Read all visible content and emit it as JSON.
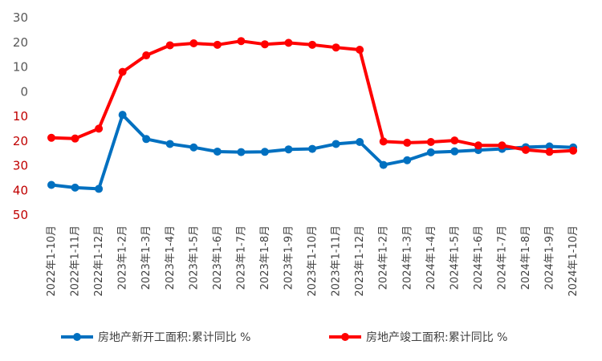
{
  "chart_data": {
    "type": "line",
    "title": "",
    "xlabel": "",
    "ylabel": "",
    "ylim": [
      -50,
      30
    ],
    "yticks": [
      {
        "value": 30,
        "label": "30"
      },
      {
        "value": 20,
        "label": "20"
      },
      {
        "value": 10,
        "label": "10"
      },
      {
        "value": 0,
        "label": "0"
      },
      {
        "value": -10,
        "label": "10"
      },
      {
        "value": -20,
        "label": "20"
      },
      {
        "value": -30,
        "label": "30"
      },
      {
        "value": -40,
        "label": "40"
      },
      {
        "value": -50,
        "label": "50"
      }
    ],
    "ytick_colors": {
      "positive": "#595959",
      "negative": "#C00000"
    },
    "grid": false,
    "legend_position": "bottom",
    "categories": [
      "2022年1-10月",
      "2022年1-11月",
      "2022年1-12月",
      "2023年1-2月",
      "2023年1-3月",
      "2023年1-4月",
      "2023年1-5月",
      "2023年1-6月",
      "2023年1-7月",
      "2023年1-8月",
      "2023年1-9月",
      "2023年1-10月",
      "2023年1-11月",
      "2023年1-12月",
      "2024年1-2月",
      "2024年1-3月",
      "2024年1-4月",
      "2024年1-5月",
      "2024年1-6月",
      "2024年1-7月",
      "2024年1-8月",
      "2024年1-9月",
      "2024年1-10月"
    ],
    "series": [
      {
        "name": "房地产新开工面积:累计同比 %",
        "color": "#0070C0",
        "values": [
          -37.8,
          -38.9,
          -39.4,
          -9.4,
          -19.2,
          -21.2,
          -22.6,
          -24.3,
          -24.5,
          -24.4,
          -23.4,
          -23.2,
          -21.2,
          -20.4,
          -29.7,
          -27.8,
          -24.6,
          -24.2,
          -23.7,
          -23.2,
          -22.5,
          -22.2,
          -22.6
        ]
      },
      {
        "name": "房地产竣工面积:累计同比 %",
        "color": "#FF0000",
        "values": [
          -18.7,
          -19.0,
          -15.0,
          8.0,
          14.7,
          18.8,
          19.6,
          19.0,
          20.5,
          19.2,
          19.8,
          19.0,
          17.9,
          17.0,
          -20.2,
          -20.7,
          -20.4,
          -19.8,
          -21.8,
          -21.8,
          -23.6,
          -24.4,
          -23.9
        ]
      }
    ]
  }
}
